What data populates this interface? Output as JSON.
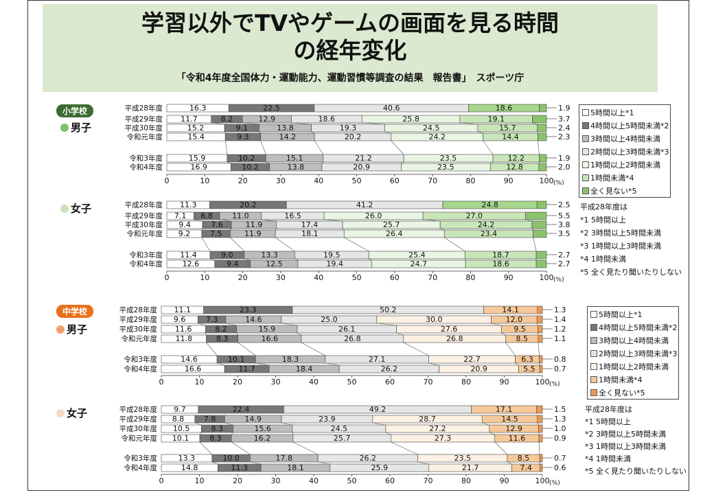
{
  "header": {
    "title_line1": "学習以外でTVやゲームの画面を見る時間",
    "title_line2": "の経年変化",
    "subtitle": "「令和4年度全国体力・運動能力、運動習慣等調査の結果　報告書」　スポーツ庁"
  },
  "groups": {
    "elementary": {
      "badge": "小学校",
      "color": "#3d6b32"
    },
    "junior": {
      "badge": "中学校",
      "color": "#e8701e"
    }
  },
  "genders": {
    "elem_boys": "男子",
    "elem_girls": "女子",
    "jh_boys": "男子",
    "jh_girls": "女子"
  },
  "legend_labels": [
    "□5時間以上*1",
    "■4時間以上5時間未満*2",
    "■3時間以上4時間未満",
    "□2時間以上3時間未満*3",
    "□1時間以上2時間未満",
    "■1時間未満*4",
    "■全く見ない*5"
  ],
  "legend_elem": [
    "□5時間以上*1",
    "■4時間以上5時間未満*2",
    "▨3時間以上4時間未満",
    "□2時間以上3時間未満*3",
    "□1時間以上2時間未満",
    "■1時間未満*4",
    "■全く見ない*5"
  ],
  "notes": [
    "平成28年度は",
    "*1 5時間以上",
    "*2 3時間以上5時間未満",
    "*3 1時間以上3時間未満",
    "*4 1時間未満",
    "*5 全く見たり聞いたりしない"
  ],
  "colors": {
    "elem": [
      "#ffffff",
      "#777777",
      "#bdbdbd",
      "#e6e6e6",
      "#e9f5e2",
      "#c8e6b8",
      "#8cc46e"
    ],
    "jh": [
      "#ffffff",
      "#777777",
      "#bdbdbd",
      "#e6e6e6",
      "#fdf1e4",
      "#f6c99a",
      "#ec9a55"
    ],
    "h28_elem": [
      "#ffffff",
      "#777777",
      "#e6e6e6",
      "#a6d68c",
      "#8cc46e"
    ],
    "h28_jh": [
      "#ffffff",
      "#777777",
      "#e6e6e6",
      "#f6c99a",
      "#ec9a55"
    ]
  },
  "chart_data": [
    {
      "type": "bar",
      "stacked": true,
      "orientation": "horizontal",
      "panel": "小学校 男子",
      "categories": [
        "平成28年度",
        "平成29年度",
        "平成30年度",
        "令和元年度",
        "令和3年度",
        "令和4年度"
      ],
      "rows": [
        [
          16.3,
          22.5,
          40.6,
          18.6,
          1.9
        ],
        [
          11.7,
          8.2,
          12.9,
          18.6,
          25.8,
          19.1,
          3.7
        ],
        [
          15.2,
          9.1,
          13.8,
          19.3,
          24.5,
          15.7,
          2.4
        ],
        [
          15.4,
          9.3,
          14.2,
          20.2,
          24.2,
          14.4,
          2.3
        ],
        [
          15.9,
          10.2,
          15.1,
          21.2,
          23.5,
          12.2,
          1.9
        ],
        [
          16.9,
          10.2,
          13.8,
          20.9,
          23.5,
          12.8,
          2.0
        ]
      ],
      "xlim": [
        0,
        100
      ],
      "xticks": [
        "0",
        "10",
        "20",
        "30",
        "40",
        "50",
        "60",
        "70",
        "80",
        "90",
        "100"
      ],
      "unit": "(%)"
    },
    {
      "type": "bar",
      "stacked": true,
      "orientation": "horizontal",
      "panel": "小学校 女子",
      "categories": [
        "平成28年度",
        "平成29年度",
        "平成30年度",
        "令和元年度",
        "令和3年度",
        "令和4年度"
      ],
      "rows": [
        [
          11.3,
          20.2,
          41.2,
          24.8,
          2.5
        ],
        [
          7.1,
          6.8,
          11.0,
          16.5,
          26.0,
          27.0,
          5.5
        ],
        [
          9.4,
          7.6,
          11.9,
          17.4,
          25.7,
          24.2,
          3.8
        ],
        [
          9.2,
          7.5,
          11.9,
          18.1,
          26.4,
          23.4,
          3.5
        ],
        [
          11.4,
          9.0,
          13.3,
          19.5,
          25.4,
          18.7,
          2.7
        ],
        [
          12.6,
          9.4,
          12.5,
          19.4,
          24.7,
          18.6,
          2.7
        ]
      ],
      "xlim": [
        0,
        100
      ],
      "xticks": [
        "0",
        "10",
        "20",
        "30",
        "40",
        "50",
        "60",
        "70",
        "80",
        "90",
        "100"
      ],
      "unit": "(%)"
    },
    {
      "type": "bar",
      "stacked": true,
      "orientation": "horizontal",
      "panel": "中学校 男子",
      "categories": [
        "平成28年度",
        "平成29年度",
        "平成30年度",
        "令和元年度",
        "令和3年度",
        "令和4年度"
      ],
      "rows": [
        [
          11.1,
          23.3,
          50.2,
          14.1,
          1.3
        ],
        [
          9.6,
          7.3,
          14.6,
          25.0,
          30.0,
          12.0,
          1.4
        ],
        [
          11.6,
          8.2,
          15.9,
          26.1,
          27.6,
          9.5,
          1.2
        ],
        [
          11.8,
          8.3,
          16.6,
          26.8,
          26.8,
          8.5,
          1.1
        ],
        [
          14.6,
          10.1,
          18.3,
          27.1,
          22.7,
          6.3,
          0.8
        ],
        [
          16.6,
          11.7,
          18.4,
          26.2,
          20.9,
          5.5,
          0.7
        ]
      ],
      "xlim": [
        0,
        100
      ],
      "xticks": [
        "0",
        "10",
        "20",
        "30",
        "40",
        "50",
        "60",
        "70",
        "80",
        "90",
        "100"
      ],
      "unit": "(%)"
    },
    {
      "type": "bar",
      "stacked": true,
      "orientation": "horizontal",
      "panel": "中学校 女子",
      "categories": [
        "平成28年度",
        "平成29年度",
        "平成30年度",
        "令和元年度",
        "令和3年度",
        "令和4年度"
      ],
      "rows": [
        [
          9.7,
          22.4,
          49.2,
          17.1,
          1.5
        ],
        [
          8.8,
          7.8,
          14.9,
          23.9,
          28.7,
          14.5,
          1.3
        ],
        [
          10.5,
          8.3,
          15.6,
          24.5,
          27.2,
          12.9,
          1.0
        ],
        [
          10.1,
          8.3,
          16.2,
          25.7,
          27.3,
          11.6,
          0.9
        ],
        [
          13.3,
          10.0,
          17.8,
          26.2,
          23.5,
          8.5,
          0.7
        ],
        [
          14.8,
          11.3,
          18.1,
          25.9,
          21.7,
          7.4,
          0.6
        ]
      ],
      "xlim": [
        0,
        100
      ],
      "xticks": [
        "0",
        "10",
        "20",
        "30",
        "40",
        "50",
        "60",
        "70",
        "80",
        "90",
        "100"
      ],
      "unit": "(%)"
    }
  ]
}
